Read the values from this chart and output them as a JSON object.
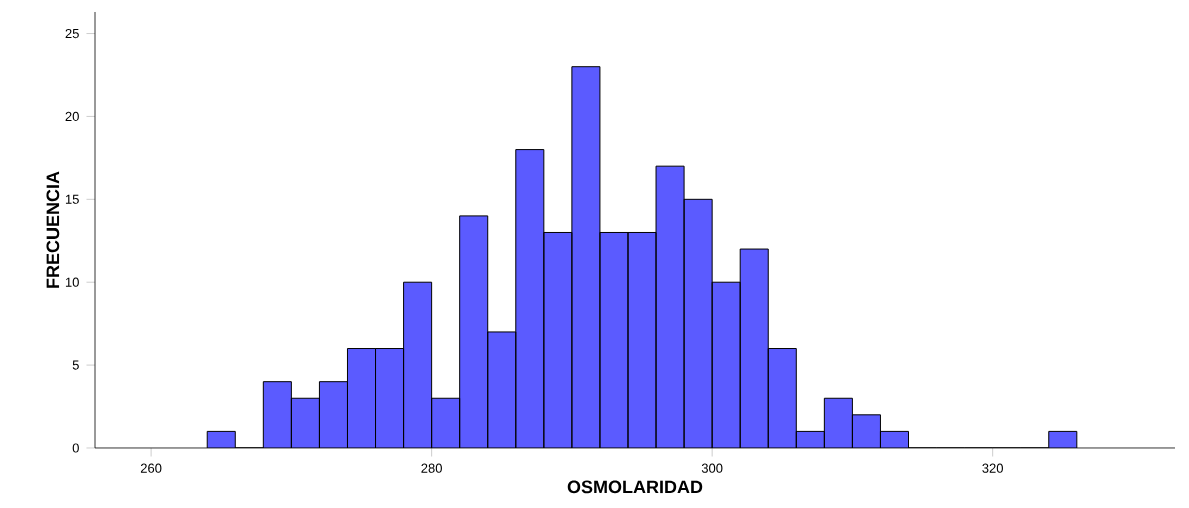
{
  "chart_data": {
    "type": "histogram",
    "xlabel": "OSMOLARIDAD",
    "ylabel": "FRECUENCIA",
    "color": "#5b5bff",
    "bins": [
      264,
      266,
      268,
      270,
      272,
      274,
      276,
      278,
      280,
      282,
      284,
      286,
      288,
      290,
      292,
      294,
      296,
      298,
      300,
      302,
      304,
      306,
      308,
      310,
      312,
      314,
      316,
      318,
      320,
      322,
      324,
      326
    ],
    "values": [
      1,
      0,
      4,
      3,
      4,
      6,
      6,
      10,
      3,
      14,
      7,
      18,
      13,
      23,
      13,
      13,
      17,
      15,
      10,
      12,
      6,
      1,
      3,
      2,
      1,
      0,
      0,
      0,
      0,
      0,
      1
    ],
    "xlim": [
      256,
      333
    ],
    "ylim": [
      0,
      26.3
    ],
    "xticks": [
      260,
      280,
      300,
      320
    ],
    "yticks": [
      0,
      5,
      10,
      15,
      20,
      25
    ]
  }
}
